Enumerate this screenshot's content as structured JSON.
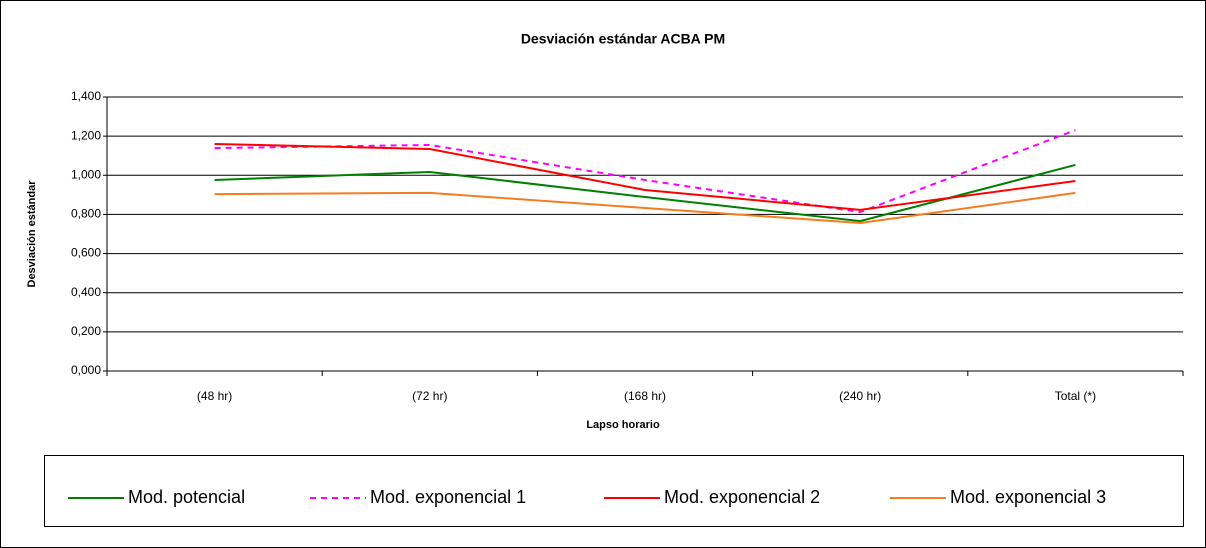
{
  "chart_data": {
    "type": "line",
    "title": "Desviación estándar ACBA PM",
    "x_label": "Lapso horario",
    "y_label": "Desviación estándar",
    "categories": [
      "(48 hr)",
      "(72 hr)",
      "(168 hr)",
      "(240 hr)",
      "Total (*)"
    ],
    "series": [
      {
        "name": "Mod. potencial",
        "color": "#008000",
        "line_style": "solid",
        "values": [
          0.976,
          1.017,
          0.889,
          0.766,
          1.053
        ]
      },
      {
        "name": "Mod. exponencial 1",
        "color": "#ff00ff",
        "line_style": "dashed",
        "values": [
          1.139,
          1.155,
          0.976,
          0.812,
          1.231
        ]
      },
      {
        "name": "Mod. exponencial 2",
        "color": "#ff0000",
        "line_style": "solid",
        "values": [
          1.16,
          1.134,
          0.925,
          0.823,
          0.971
        ]
      },
      {
        "name": "Mod. exponencial 3",
        "color": "#f57c1f",
        "line_style": "solid",
        "values": [
          0.904,
          0.91,
          0.833,
          0.756,
          0.91
        ]
      }
    ],
    "ylim": [
      0,
      1.4
    ],
    "yticks": [
      {
        "value": 0,
        "label": "0,000"
      },
      {
        "value": 0.2,
        "label": "0,200"
      },
      {
        "value": 0.4,
        "label": "0,400"
      },
      {
        "value": 0.6,
        "label": "0,600"
      },
      {
        "value": 0.8,
        "label": "0,800"
      },
      {
        "value": 1.0,
        "label": "1,000"
      },
      {
        "value": 1.2,
        "label": "1,200"
      },
      {
        "value": 1.4,
        "label": "1,400"
      }
    ],
    "grid": true,
    "legend": "bottom"
  }
}
